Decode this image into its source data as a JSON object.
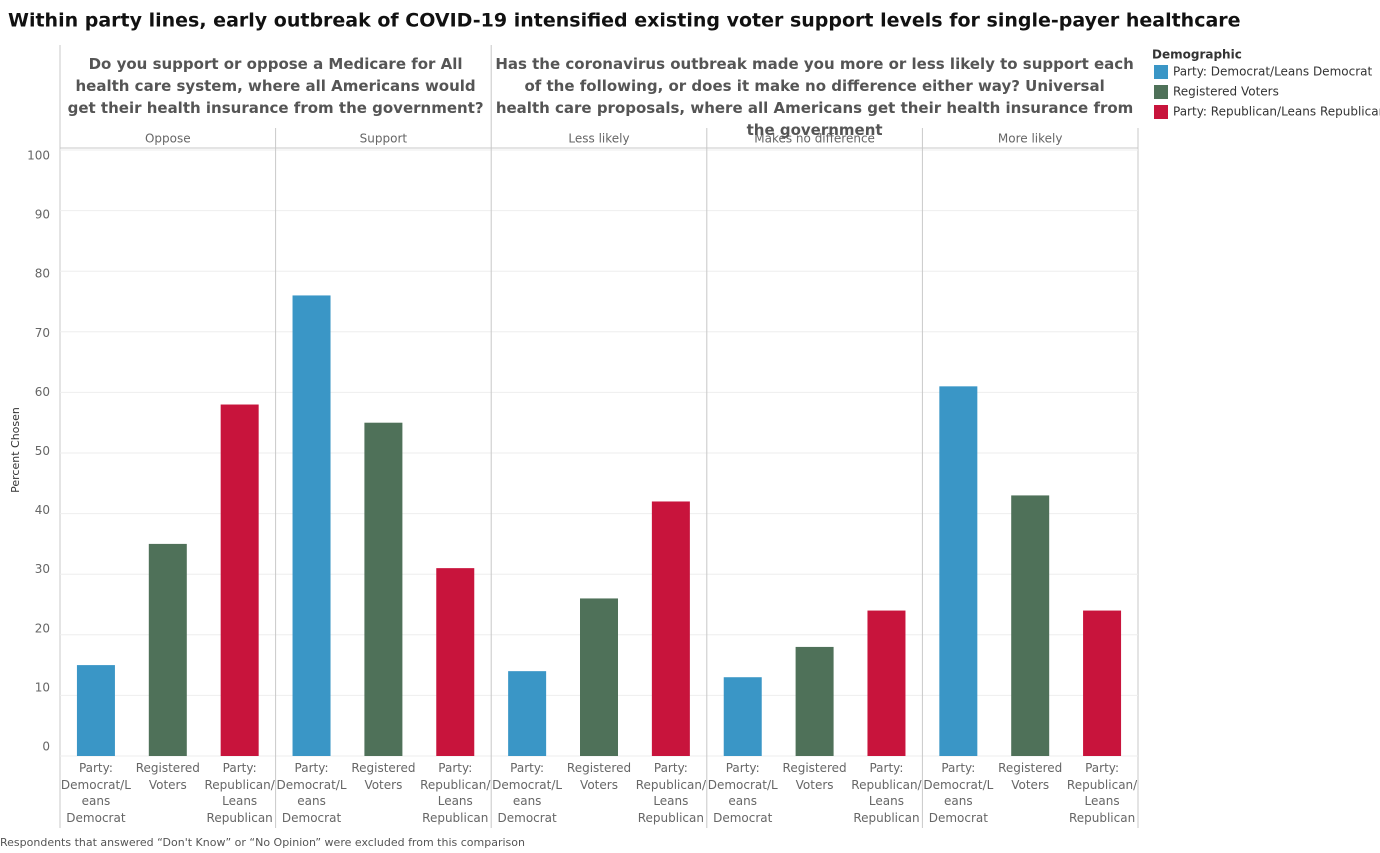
{
  "chart_data": {
    "type": "bar",
    "title": "Within party lines, early outbreak of COVID-19 intensified existing voter support levels for single-payer healthcare",
    "questions": [
      {
        "text": "Do you support or oppose a Medicare for All health care system, where all Americans would get their health insurance from the government?",
        "panes": [
          "Oppose",
          "Support"
        ]
      },
      {
        "text": "Has the coronavirus outbreak made you more or less likely to support each of the following, or does it make no difference either way? Universal health care proposals, where all Americans get their health insurance from the government",
        "panes": [
          "Less likely",
          "Makes no difference",
          "More likely"
        ]
      }
    ],
    "series": [
      {
        "name": "Party: Democrat/Leans Democrat",
        "color": "#3a96c6",
        "values": [
          15,
          76,
          14,
          13,
          61
        ]
      },
      {
        "name": "Registered Voters",
        "color": "#4f7159",
        "values": [
          35,
          55,
          26,
          18,
          43
        ]
      },
      {
        "name": "Party: Republican/Leans Republican",
        "color": "#c8143c",
        "values": [
          58,
          31,
          42,
          24,
          24
        ]
      }
    ],
    "y_label": "Percent Chosen",
    "ylim": [
      0,
      100
    ],
    "yticks": [
      0,
      10,
      20,
      30,
      40,
      50,
      60,
      70,
      80,
      90,
      100
    ],
    "grid": true,
    "legend_title": "Demographic",
    "footnote": "Respondents that answered “Don't Know” or “No Opinion” were excluded from this comparison"
  }
}
